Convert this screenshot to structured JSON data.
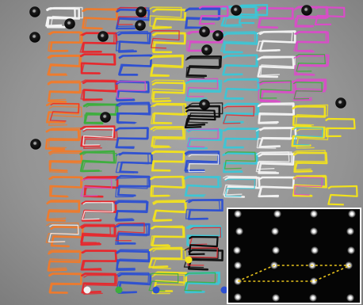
{
  "figure": {
    "background_color": "#8f8f8f",
    "frame_color": "#ffffff",
    "trajectory_colors": {
      "orange": "#f07a2a",
      "white": "#f4f4f4",
      "red": "#e8262b",
      "green": "#3cae3c",
      "blue": "#2c4fd2",
      "yellow": "#f2e21c",
      "cyan": "#3cc6d6",
      "magenta": "#d94cc8",
      "black": "#0c0c0c"
    },
    "particle_color": "#151515",
    "inset": {
      "background_color": "#050505",
      "spot_color": "#ffffff",
      "lattice_line_color": "#e8c31c"
    }
  }
}
